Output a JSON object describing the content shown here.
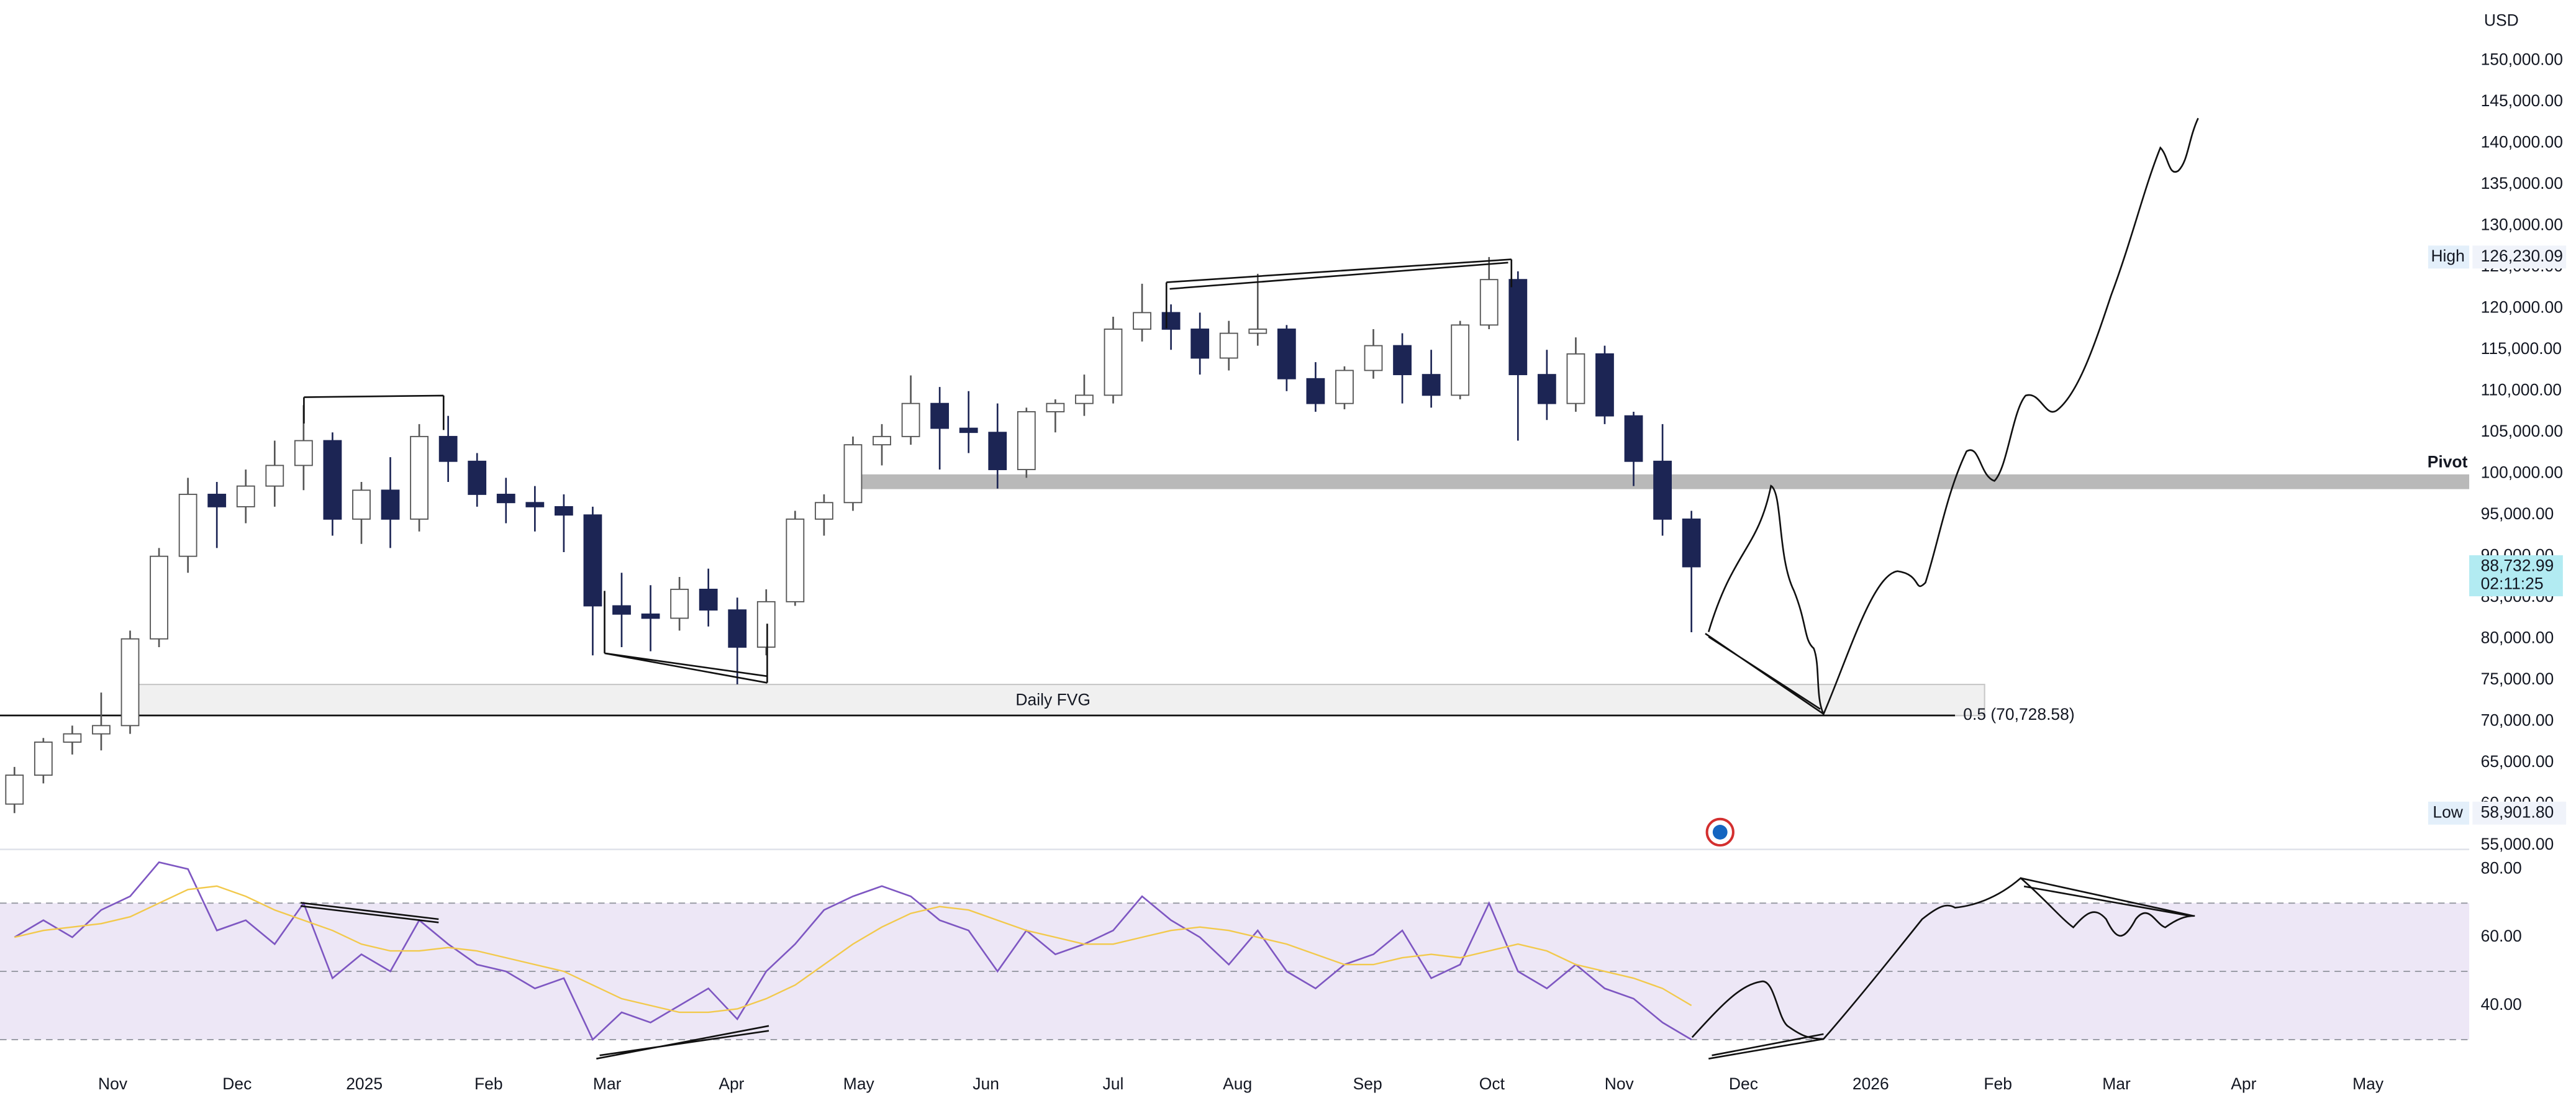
{
  "chart_data": [
    {
      "type": "candlestick",
      "unit": "USD",
      "categories": [
        null,
        null,
        null,
        null,
        null,
        null,
        null,
        null,
        null,
        null,
        null,
        null,
        null,
        null,
        null,
        null,
        null,
        null,
        null,
        null,
        null,
        null,
        null,
        null,
        null,
        null,
        null,
        null,
        null,
        null,
        null,
        null,
        null,
        null,
        null,
        null,
        null,
        null,
        null,
        null,
        null,
        null,
        null,
        null,
        null,
        null,
        null,
        null,
        null,
        null,
        null,
        null,
        null,
        null,
        null,
        null,
        null,
        null,
        null
      ],
      "values": [
        [
          60000,
          64500,
          58901.8,
          63500
        ],
        [
          63500,
          68000,
          62500,
          67500
        ],
        [
          67500,
          69500,
          66000,
          68500
        ],
        [
          68500,
          73500,
          66500,
          69500
        ],
        [
          69500,
          81000,
          68500,
          80000
        ],
        [
          80000,
          91000,
          79000,
          90000
        ],
        [
          90000,
          99500,
          88000,
          97500
        ],
        [
          97500,
          99000,
          91000,
          96000
        ],
        [
          96000,
          100500,
          94000,
          98500
        ],
        [
          98500,
          104000,
          96000,
          101000
        ],
        [
          101000,
          108300,
          98000,
          104000
        ],
        [
          104000,
          105000,
          92500,
          94500
        ],
        [
          94500,
          99000,
          91500,
          98000
        ],
        [
          98000,
          102000,
          91000,
          94500
        ],
        [
          94500,
          106000,
          93000,
          104500
        ],
        [
          104500,
          107000,
          99000,
          101500
        ],
        [
          101500,
          102500,
          96000,
          97500
        ],
        [
          97500,
          99500,
          94000,
          96500
        ],
        [
          96500,
          98500,
          93000,
          96000
        ],
        [
          96000,
          97500,
          90500,
          95000
        ],
        [
          95000,
          96000,
          78000,
          84000
        ],
        [
          84000,
          88000,
          79000,
          83000
        ],
        [
          83000,
          86500,
          78500,
          82500
        ],
        [
          82500,
          87500,
          81000,
          86000
        ],
        [
          86000,
          88500,
          81500,
          83500
        ],
        [
          83500,
          85000,
          74500,
          79000
        ],
        [
          79000,
          86000,
          78000,
          84500
        ],
        [
          84500,
          95500,
          84000,
          94500
        ],
        [
          94500,
          97500,
          92500,
          96500
        ],
        [
          96500,
          104500,
          95500,
          103500
        ],
        [
          103500,
          106000,
          101000,
          104500
        ],
        [
          104500,
          111900,
          103500,
          108500
        ],
        [
          108500,
          110500,
          100500,
          105500
        ],
        [
          105500,
          110000,
          102500,
          105000
        ],
        [
          105000,
          108500,
          98200,
          100500
        ],
        [
          100500,
          108000,
          99500,
          107500
        ],
        [
          107500,
          109000,
          105000,
          108500
        ],
        [
          108500,
          112000,
          107000,
          109500
        ],
        [
          109500,
          119000,
          108500,
          117500
        ],
        [
          117500,
          123000,
          116000,
          119500
        ],
        [
          119500,
          120500,
          115000,
          117500
        ],
        [
          117500,
          119500,
          112000,
          114000
        ],
        [
          114000,
          118500,
          112500,
          117000
        ],
        [
          117000,
          124200,
          115500,
          117500
        ],
        [
          117500,
          118000,
          110000,
          111500
        ],
        [
          111500,
          113500,
          107500,
          108500
        ],
        [
          108500,
          113000,
          107800,
          112500
        ],
        [
          112500,
          117500,
          111500,
          115500
        ],
        [
          115500,
          117000,
          108500,
          112000
        ],
        [
          112000,
          115000,
          108000,
          109500
        ],
        [
          109500,
          118500,
          109000,
          118000
        ],
        [
          118000,
          126230.09,
          117500,
          123500
        ],
        [
          123500,
          124500,
          104000,
          112000
        ],
        [
          112000,
          115000,
          106500,
          108500
        ],
        [
          108500,
          116500,
          107500,
          114500
        ],
        [
          114500,
          115500,
          106000,
          107000
        ],
        [
          107000,
          107500,
          98500,
          101500
        ],
        [
          101500,
          106000,
          92500,
          94500
        ],
        [
          94500,
          95500,
          80800,
          88732.99
        ]
      ],
      "up_color": "#ffffff",
      "down_color": "#1c2554",
      "xlim": [
        0,
        85.4
      ],
      "ylim": [
        54610,
        157350
      ],
      "yticks": [
        {
          "value": 55000,
          "label": "55,000.00"
        },
        {
          "value": 60000,
          "label": "60,000.00"
        },
        {
          "value": 65000,
          "label": "65,000.00"
        },
        {
          "value": 70000,
          "label": "70,000.00"
        },
        {
          "value": 75000,
          "label": "75,000.00"
        },
        {
          "value": 80000,
          "label": "80,000.00"
        },
        {
          "value": 85000,
          "label": "85,000.00"
        },
        {
          "value": 90000,
          "label": "90,000.00"
        },
        {
          "value": 95000,
          "label": "95,000.00"
        },
        {
          "value": 100000,
          "label": "100,000.00"
        },
        {
          "value": 105000,
          "label": "105,000.00"
        },
        {
          "value": 110000,
          "label": "110,000.00"
        },
        {
          "value": 115000,
          "label": "115,000.00"
        },
        {
          "value": 120000,
          "label": "120,000.00"
        },
        {
          "value": 125000,
          "label": "125,000.00"
        },
        {
          "value": 130000,
          "label": "130,000.00"
        },
        {
          "value": 135000,
          "label": "135,000.00"
        },
        {
          "value": 140000,
          "label": "140,000.00"
        },
        {
          "value": 145000,
          "label": "145,000.00"
        },
        {
          "value": 150000,
          "label": "150,000.00"
        }
      ],
      "high": {
        "label": "High",
        "value": 126230.09,
        "value_label": "126,230.09"
      },
      "low": {
        "label": "Low",
        "value": 58901.8,
        "value_label": "58,901.80"
      },
      "last_price": {
        "value": 88732.99,
        "value_label": "88,732.99",
        "countdown": "02:11:25",
        "color": "#b2ebf2"
      },
      "pivot_label": "Pivot",
      "fvg_label": "Daily FVG",
      "annotations": [
        {
          "text": "0.5 (70,728.58)",
          "value": 70728.58
        }
      ]
    },
    {
      "type": "line",
      "categories": [
        null,
        null,
        null,
        null,
        null,
        null,
        null,
        null,
        null,
        null,
        null,
        null,
        null,
        null,
        null,
        null,
        null,
        null,
        null,
        null,
        null,
        null,
        null,
        null,
        null,
        null,
        null,
        null,
        null,
        null,
        null,
        null,
        null,
        null,
        null,
        null,
        null,
        null,
        null,
        null,
        null,
        null,
        null,
        null,
        null,
        null,
        null,
        null,
        null,
        null,
        null,
        null,
        null,
        null,
        null,
        null,
        null,
        null,
        null
      ],
      "series": [
        {
          "color": "#7e57c2",
          "values": [
            60,
            65,
            60,
            68,
            72,
            82,
            80,
            62,
            65,
            58,
            70,
            48,
            55,
            50,
            65,
            58,
            52,
            50,
            45,
            48,
            30,
            38,
            35,
            40,
            45,
            36,
            50,
            58,
            68,
            72,
            75,
            72,
            65,
            62,
            50,
            62,
            55,
            58,
            62,
            72,
            65,
            60,
            52,
            62,
            50,
            45,
            52,
            55,
            62,
            48,
            52,
            70,
            50,
            45,
            52,
            45,
            42,
            35,
            30
          ]
        },
        {
          "color": "#f2c94c",
          "values": [
            60,
            62,
            63,
            64,
            66,
            70,
            74,
            75,
            72,
            68,
            65,
            62,
            58,
            56,
            56,
            57,
            56,
            54,
            52,
            50,
            46,
            42,
            40,
            38,
            38,
            39,
            42,
            46,
            52,
            58,
            63,
            67,
            69,
            68,
            65,
            62,
            60,
            58,
            58,
            60,
            62,
            63,
            62,
            60,
            58,
            55,
            52,
            52,
            54,
            55,
            54,
            56,
            58,
            56,
            52,
            50,
            48,
            45,
            40
          ]
        }
      ],
      "band": [
        30,
        70
      ],
      "midline": 50,
      "band_color": "#ede7f6",
      "xlim": [
        0,
        85.4
      ],
      "ylim": [
        22,
        86
      ],
      "yticks": [
        {
          "value": 40,
          "label": "40.00"
        },
        {
          "value": 60,
          "label": "60.00"
        },
        {
          "value": 80,
          "label": "80.00"
        }
      ],
      "xticks": [
        {
          "value": 3.9,
          "label": "Nov"
        },
        {
          "value": 8.2,
          "label": "Dec"
        },
        {
          "value": 12.6,
          "label": "2025"
        },
        {
          "value": 16.9,
          "label": "Feb"
        },
        {
          "value": 21.0,
          "label": "Mar"
        },
        {
          "value": 25.3,
          "label": "Apr"
        },
        {
          "value": 29.7,
          "label": "May"
        },
        {
          "value": 34.1,
          "label": "Jun"
        },
        {
          "value": 38.5,
          "label": "Jul"
        },
        {
          "value": 42.8,
          "label": "Aug"
        },
        {
          "value": 47.3,
          "label": "Sep"
        },
        {
          "value": 51.6,
          "label": "Oct"
        },
        {
          "value": 56.0,
          "label": "Nov"
        },
        {
          "value": 60.3,
          "label": "Dec"
        },
        {
          "value": 64.7,
          "label": "2026"
        },
        {
          "value": 69.1,
          "label": "Feb"
        },
        {
          "value": 73.2,
          "label": "Mar"
        },
        {
          "value": 77.6,
          "label": "Apr"
        },
        {
          "value": 81.9,
          "label": "May"
        }
      ]
    }
  ]
}
